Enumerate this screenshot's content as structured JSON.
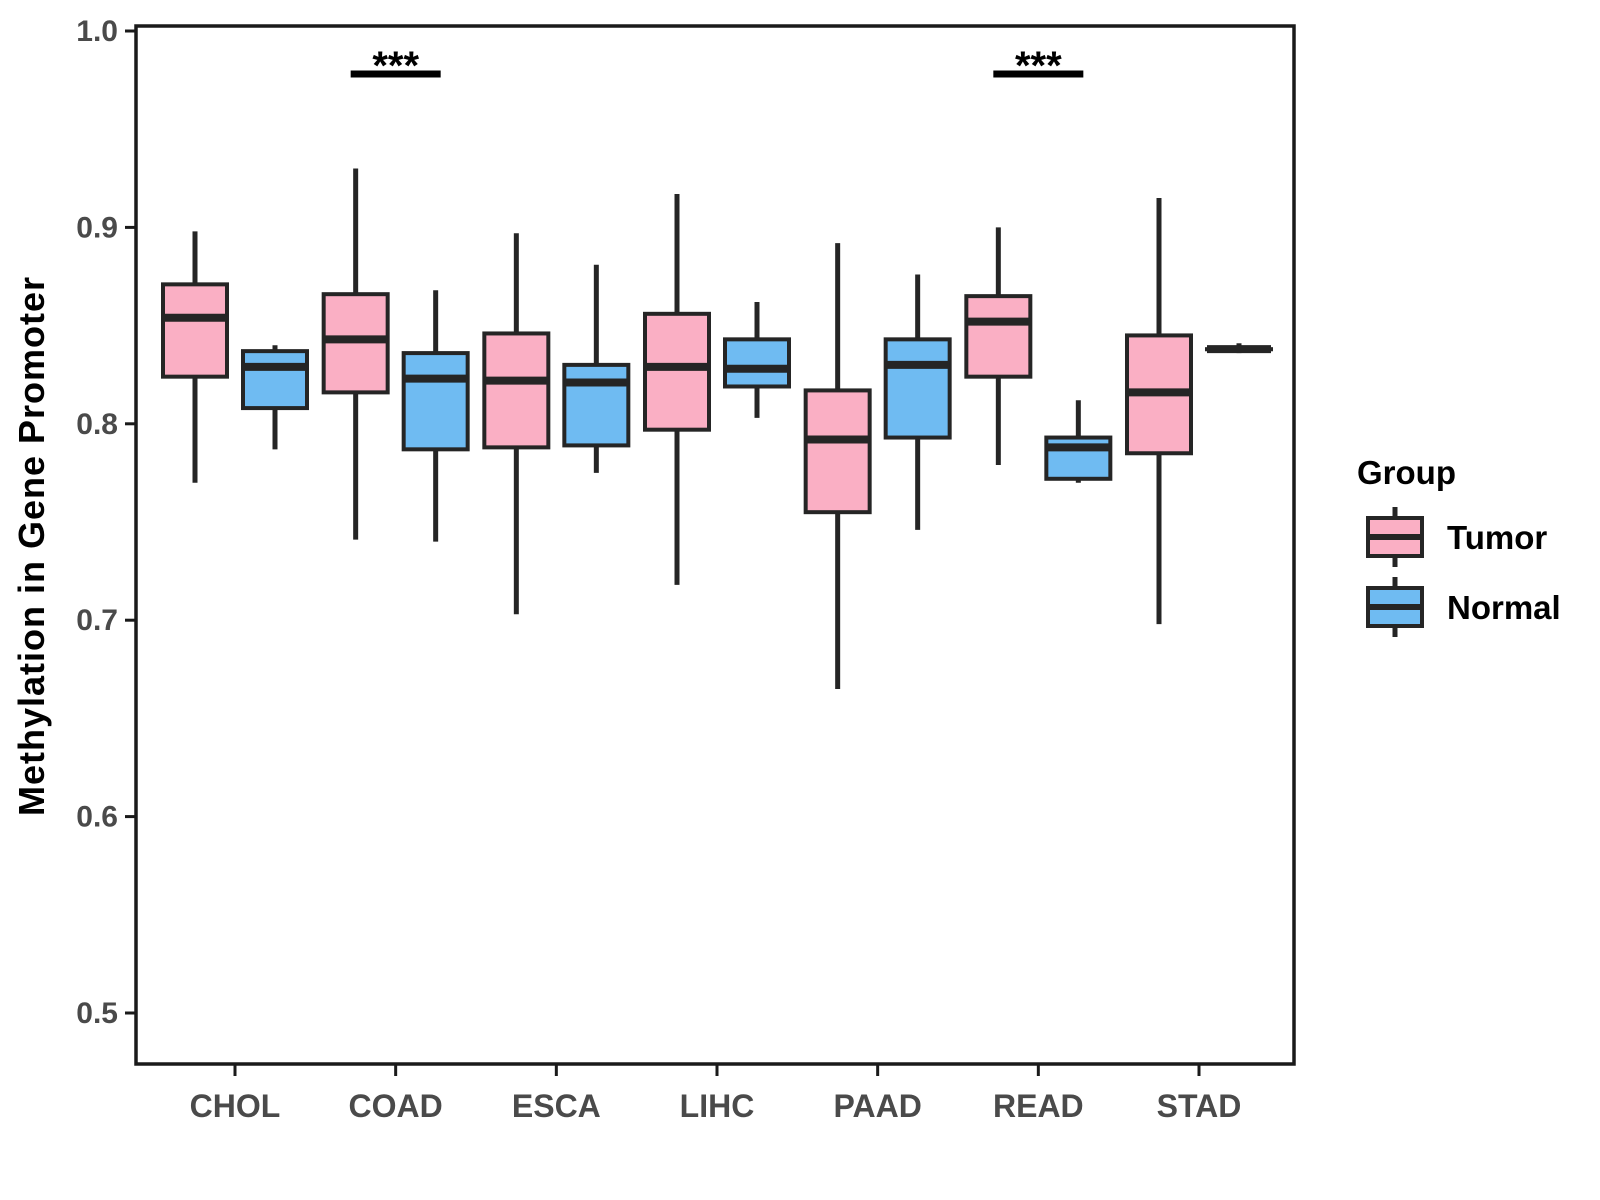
{
  "chart_data": {
    "type": "boxplot",
    "title": "",
    "xlabel": "",
    "ylabel": "Methylation in Gene Promoter",
    "ylim": [
      0.47,
      1.005
    ],
    "grid": false,
    "legend": {
      "title": "Group",
      "position": "right",
      "items": [
        {
          "label": "Tumor",
          "color": "#FAAFC4"
        },
        {
          "label": "Normal",
          "color": "#6FBBF2"
        }
      ]
    },
    "y_ticks": [
      {
        "label": "1.0",
        "value": 1.0
      },
      {
        "label": "0.9",
        "value": 0.9
      },
      {
        "label": "0.8",
        "value": 0.8
      },
      {
        "label": "0.7",
        "value": 0.7
      },
      {
        "label": "0.6",
        "value": 0.6
      },
      {
        "label": "0.5",
        "value": 0.5
      }
    ],
    "categories": [
      "CHOL",
      "COAD",
      "ESCA",
      "LIHC",
      "PAAD",
      "READ",
      "STAD"
    ],
    "series": [
      {
        "name": "Tumor",
        "color": "#FAAFC4",
        "boxes": [
          {
            "min": 0.77,
            "q1": 0.824,
            "median": 0.854,
            "q3": 0.871,
            "max": 0.898
          },
          {
            "min": 0.741,
            "q1": 0.816,
            "median": 0.843,
            "q3": 0.866,
            "max": 0.93
          },
          {
            "min": 0.703,
            "q1": 0.788,
            "median": 0.822,
            "q3": 0.846,
            "max": 0.897
          },
          {
            "min": 0.718,
            "q1": 0.797,
            "median": 0.829,
            "q3": 0.856,
            "max": 0.917
          },
          {
            "min": 0.665,
            "q1": 0.755,
            "median": 0.792,
            "q3": 0.817,
            "max": 0.892
          },
          {
            "min": 0.779,
            "q1": 0.824,
            "median": 0.852,
            "q3": 0.865,
            "max": 0.9
          },
          {
            "min": 0.698,
            "q1": 0.785,
            "median": 0.816,
            "q3": 0.845,
            "max": 0.915
          }
        ]
      },
      {
        "name": "Normal",
        "color": "#6FBBF2",
        "boxes": [
          {
            "min": 0.787,
            "q1": 0.808,
            "median": 0.829,
            "q3": 0.837,
            "max": 0.84
          },
          {
            "min": 0.74,
            "q1": 0.787,
            "median": 0.823,
            "q3": 0.836,
            "max": 0.868
          },
          {
            "min": 0.775,
            "q1": 0.789,
            "median": 0.821,
            "q3": 0.83,
            "max": 0.881
          },
          {
            "min": 0.803,
            "q1": 0.819,
            "median": 0.828,
            "q3": 0.843,
            "max": 0.862
          },
          {
            "min": 0.746,
            "q1": 0.793,
            "median": 0.83,
            "q3": 0.843,
            "max": 0.876
          },
          {
            "min": 0.77,
            "q1": 0.772,
            "median": 0.788,
            "q3": 0.793,
            "max": 0.812
          },
          {
            "min": 0.836,
            "q1": 0.838,
            "median": 0.838,
            "q3": 0.838,
            "max": 0.841
          }
        ]
      }
    ],
    "significance": [
      {
        "category": "COAD",
        "label": "***"
      },
      {
        "category": "READ",
        "label": "***"
      }
    ]
  },
  "style": {
    "box_border": "#252525",
    "axis_color": "#1a1a1a",
    "tick_label_color": "#4a4a4a",
    "text_color": "#000000",
    "background": "#ffffff"
  }
}
